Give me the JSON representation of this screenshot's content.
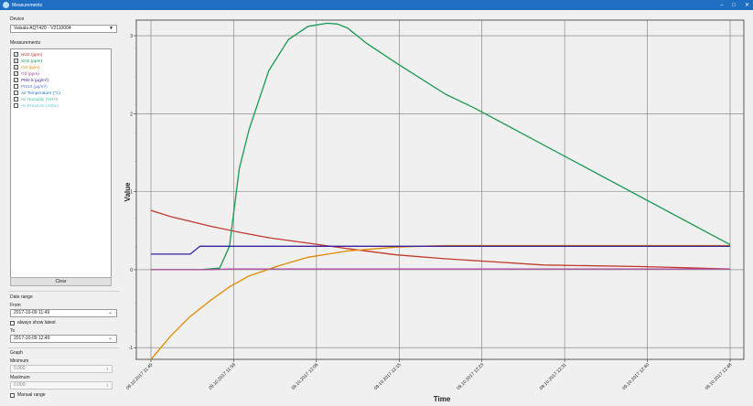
{
  "window": {
    "title": "Measurements",
    "minimize": "–",
    "maximize": "□",
    "close": "✕"
  },
  "device": {
    "label": "Device",
    "selected": "Vaisala AQT420 - V2110004"
  },
  "measurements": {
    "label": "Measurements",
    "items": [
      {
        "name": "NO2 (ppm)",
        "checked": true,
        "color": "#c0392b"
      },
      {
        "name": "SO2 (ppm)",
        "checked": true,
        "color": "#1a9850"
      },
      {
        "name": "CO (ppm)",
        "checked": true,
        "color": "#e08a00"
      },
      {
        "name": "O3 (ppm)",
        "checked": true,
        "color": "#b04aa0"
      },
      {
        "name": "PM2.5 (µg/m³)",
        "checked": true,
        "color": "#3a1f9e"
      },
      {
        "name": "PM10 (µg/m³)",
        "checked": false,
        "color": "#5a7ad8"
      },
      {
        "name": "Air Temperature (°C)",
        "checked": false,
        "color": "#1b75c9"
      },
      {
        "name": "Air Humidity (%RH)",
        "checked": false,
        "color": "#3cc49a"
      },
      {
        "name": "Air Pressure (mbar)",
        "checked": false,
        "color": "#5fc8d8"
      }
    ],
    "clear_label": "Clear"
  },
  "date_range": {
    "label": "Date range",
    "from_label": "From",
    "from_value": "2017-10-09 11:49",
    "always_latest_label": "always show latest",
    "to_label": "To",
    "to_value": "2017-10-09 12:49"
  },
  "graph": {
    "label": "Graph",
    "minimum_label": "Minimum",
    "minimum_value": "0.000",
    "maximum_label": "Maximum",
    "maximum_value": "0.000",
    "manual_range_label": "Manual range"
  },
  "chart_data": {
    "type": "line",
    "xlabel": "Time",
    "ylabel": "Value",
    "ylim": [
      -1.15,
      3.2
    ],
    "yticks": [
      -1,
      0,
      1,
      2,
      3
    ],
    "xticks": [
      "09.10.2017 11:49",
      "09.10.2017 11:58",
      "09.10.2017 12:06",
      "09.10.2017 12:15",
      "09.10.2017 12:23",
      "09.10.2017 12:31",
      "09.10.2017 12:40",
      "09.10.2017 12:48"
    ],
    "grid": true,
    "series": [
      {
        "name": "NO2 (ppm)",
        "color": "#c0392b",
        "x": [
          0,
          2,
          4,
          6,
          9,
          12,
          16,
          20,
          25,
          30,
          35,
          40,
          50,
          59
        ],
        "y": [
          0.76,
          0.68,
          0.62,
          0.56,
          0.48,
          0.41,
          0.34,
          0.27,
          0.19,
          0.14,
          0.1,
          0.06,
          0.04,
          0.01
        ]
      },
      {
        "name": "SO2 (ppm)",
        "color": "#1a9850",
        "x": [
          0,
          5,
          7,
          8,
          9,
          10,
          12,
          14,
          16,
          18,
          19,
          20,
          22,
          25,
          30,
          33,
          59
        ],
        "y": [
          0.0,
          0.0,
          0.02,
          0.3,
          1.3,
          1.8,
          2.55,
          2.95,
          3.12,
          3.16,
          3.15,
          3.1,
          2.9,
          2.65,
          2.25,
          2.07,
          0.32
        ]
      },
      {
        "name": "CO (ppm)",
        "color": "#e08a00",
        "x": [
          0,
          2,
          4,
          6,
          8,
          10,
          13,
          16,
          20,
          25,
          30,
          59
        ],
        "y": [
          -1.15,
          -0.85,
          -0.6,
          -0.4,
          -0.22,
          -0.08,
          0.05,
          0.16,
          0.24,
          0.29,
          0.31,
          0.31
        ]
      },
      {
        "name": "O3 (ppm)",
        "color": "#b04aa0",
        "x": [
          0,
          3,
          6,
          8,
          59
        ],
        "y": [
          0.0,
          0.0,
          0.0,
          0.01,
          0.01
        ]
      },
      {
        "name": "PM2.5 (µg/m³)",
        "color": "#3a1f9e",
        "x": [
          0,
          4,
          5,
          59
        ],
        "y": [
          0.2,
          0.2,
          0.3,
          0.3
        ]
      }
    ]
  }
}
